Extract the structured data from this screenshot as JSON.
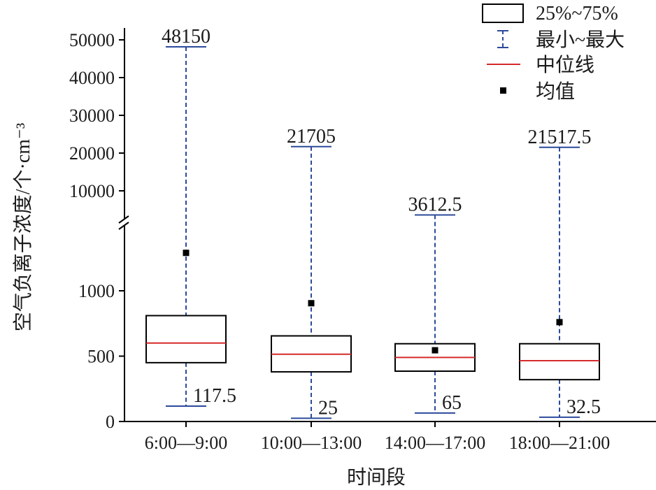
{
  "chart_data": {
    "type": "box",
    "xlabel": "时间段",
    "ylabel": "空气负离子浓度/个·cm⁻³",
    "categories": [
      "6:00—9:00",
      "10:00—13:00",
      "14:00—17:00",
      "18:00—21:00"
    ],
    "y_axis": {
      "broken": true,
      "lower_segment": {
        "range": [
          0,
          1500
        ],
        "ticks": [
          0,
          500,
          1000
        ]
      },
      "upper_segment": {
        "range": [
          3000,
          50000
        ],
        "ticks": [
          10000,
          20000,
          30000,
          40000,
          50000
        ]
      }
    },
    "boxes": [
      {
        "category": "6:00—9:00",
        "min": 117.5,
        "q1": 450,
        "median": 600,
        "q3": 810,
        "max": 48150,
        "mean": 1290,
        "min_label": "117.5",
        "max_label": "48150"
      },
      {
        "category": "10:00—13:00",
        "min": 25,
        "q1": 380,
        "median": 515,
        "q3": 655,
        "max": 21705,
        "mean": 905,
        "min_label": "25",
        "max_label": "21705"
      },
      {
        "category": "14:00—17:00",
        "min": 65,
        "q1": 385,
        "median": 490,
        "q3": 595,
        "max": 3612.5,
        "mean": 545,
        "min_label": "65",
        "max_label": "3612.5"
      },
      {
        "category": "18:00—21:00",
        "min": 32.5,
        "q1": 320,
        "median": 465,
        "q3": 595,
        "max": 21517.5,
        "mean": 760,
        "min_label": "32.5",
        "max_label": "21517.5"
      }
    ],
    "legend": {
      "position": "top-right",
      "items": [
        {
          "key": "box",
          "label": "25%~75%"
        },
        {
          "key": "whisker",
          "label": "最小~最大"
        },
        {
          "key": "median",
          "label": "中位线"
        },
        {
          "key": "mean",
          "label": "均值"
        }
      ]
    },
    "colors": {
      "box": "#000000",
      "whisker": "#2b4a9a",
      "median": "#d62a2a",
      "mean": "#000000",
      "axis": "#000000"
    },
    "grid": false
  }
}
